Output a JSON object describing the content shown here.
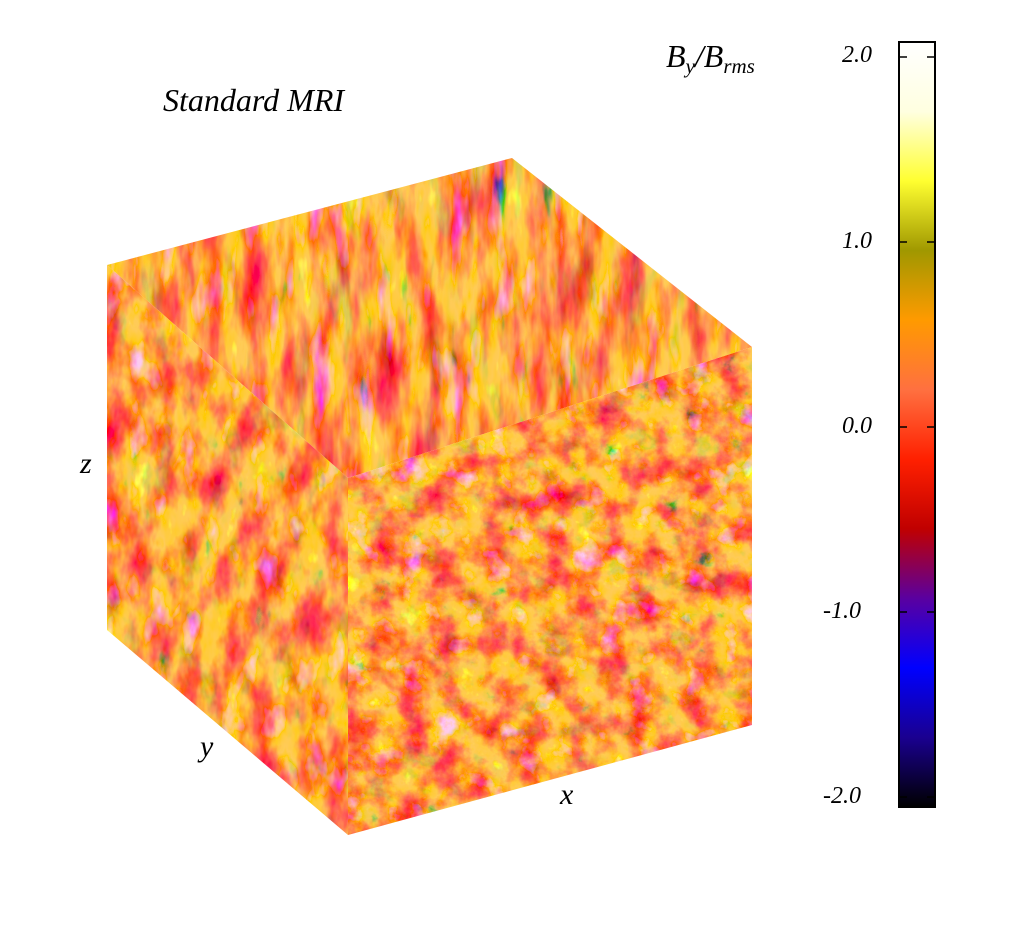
{
  "title": "Standard MRI",
  "quantity": {
    "base": "B",
    "sub1": "y",
    "sep": "/",
    "base2": "B",
    "sub2": "rms"
  },
  "axes": {
    "x": "x",
    "y": "y",
    "z": "z"
  },
  "colorbar": {
    "min": -2.0,
    "max": 2.0,
    "ticks": [
      "2.0",
      "1.0",
      "0.0",
      "-1.0",
      "-2.0"
    ],
    "colormap": [
      "#000000",
      "#1a0090",
      "#0000ff",
      "#5a00a0",
      "#c00000",
      "#ff2000",
      "#ff7040",
      "#ff9a00",
      "#a09800",
      "#ffff30",
      "#ffffe0",
      "#ffffff"
    ]
  }
}
